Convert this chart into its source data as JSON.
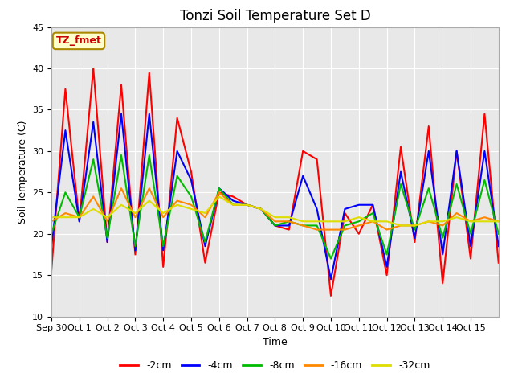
{
  "title": "Tonzi Soil Temperature Set D",
  "xlabel": "Time",
  "ylabel": "Soil Temperature (C)",
  "ylim": [
    10,
    45
  ],
  "xlim": [
    0,
    16
  ],
  "xtick_labels": [
    "Sep 30",
    "Oct 1",
    "Oct 2",
    "Oct 3",
    "Oct 4",
    "Oct 5",
    "Oct 6",
    "Oct 7",
    "Oct 8",
    "Oct 9",
    "Oct 10",
    "Oct 11",
    "Oct 12",
    "Oct 13",
    "Oct 14",
    "Oct 15"
  ],
  "ytick_values": [
    10,
    15,
    20,
    25,
    30,
    35,
    40,
    45
  ],
  "annotation_label": "TZ_fmet",
  "annotation_color": "#cc0000",
  "annotation_bg": "#ffffcc",
  "annotation_border": "#aa8800",
  "series": {
    "neg2cm": {
      "label": "-2cm",
      "color": "#ff0000",
      "linewidth": 1.5,
      "values": [
        15.5,
        37.5,
        21.5,
        40.0,
        19.0,
        38.0,
        17.5,
        39.5,
        16.0,
        34.0,
        27.5,
        16.5,
        25.0,
        24.5,
        23.5,
        23.0,
        21.0,
        20.5,
        30.0,
        29.0,
        12.5,
        22.5,
        20.0,
        23.5,
        15.0,
        30.5,
        19.0,
        33.0,
        14.0,
        30.0,
        17.0,
        34.5,
        16.5
      ]
    },
    "neg4cm": {
      "label": "-4cm",
      "color": "#0000ff",
      "linewidth": 1.5,
      "values": [
        18.5,
        32.5,
        21.5,
        33.5,
        19.0,
        34.5,
        18.0,
        34.5,
        18.0,
        30.0,
        26.5,
        18.5,
        25.5,
        24.0,
        23.5,
        23.0,
        21.0,
        21.0,
        27.0,
        23.0,
        14.5,
        23.0,
        23.5,
        23.5,
        16.0,
        27.5,
        19.5,
        30.0,
        17.5,
        30.0,
        18.5,
        30.0,
        18.5
      ]
    },
    "neg8cm": {
      "label": "-8cm",
      "color": "#00bb00",
      "linewidth": 1.5,
      "values": [
        20.0,
        25.0,
        22.0,
        29.0,
        19.5,
        29.5,
        18.5,
        29.5,
        18.5,
        27.0,
        24.5,
        19.0,
        25.5,
        23.5,
        23.5,
        23.0,
        21.0,
        21.5,
        21.0,
        21.0,
        17.0,
        21.0,
        21.5,
        22.5,
        17.5,
        26.0,
        20.5,
        25.5,
        19.5,
        26.0,
        20.0,
        26.5,
        20.0
      ]
    },
    "neg16cm": {
      "label": "-16cm",
      "color": "#ff8800",
      "linewidth": 1.5,
      "values": [
        21.5,
        22.5,
        22.0,
        24.5,
        21.5,
        25.5,
        22.0,
        25.5,
        22.0,
        24.0,
        23.5,
        22.0,
        25.0,
        23.5,
        23.5,
        23.0,
        21.5,
        21.5,
        21.0,
        20.5,
        20.5,
        20.5,
        21.0,
        21.5,
        20.5,
        21.0,
        21.0,
        21.5,
        21.0,
        22.5,
        21.5,
        22.0,
        21.5
      ]
    },
    "neg32cm": {
      "label": "-32cm",
      "color": "#dddd00",
      "linewidth": 1.5,
      "values": [
        22.0,
        22.0,
        22.0,
        23.0,
        22.0,
        23.5,
        22.5,
        24.0,
        22.5,
        23.5,
        23.0,
        22.5,
        24.5,
        23.5,
        23.5,
        23.0,
        22.0,
        22.0,
        21.5,
        21.5,
        21.5,
        21.5,
        22.0,
        21.5,
        21.5,
        21.0,
        21.0,
        21.5,
        21.5,
        22.0,
        21.5,
        21.5,
        21.5
      ]
    }
  },
  "plot_bg_color": "#e8e8e8",
  "grid_color": "#ffffff",
  "fig_bg_color": "#ffffff",
  "title_fontsize": 12,
  "axis_label_fontsize": 9,
  "tick_fontsize": 8,
  "legend_fontsize": 9
}
